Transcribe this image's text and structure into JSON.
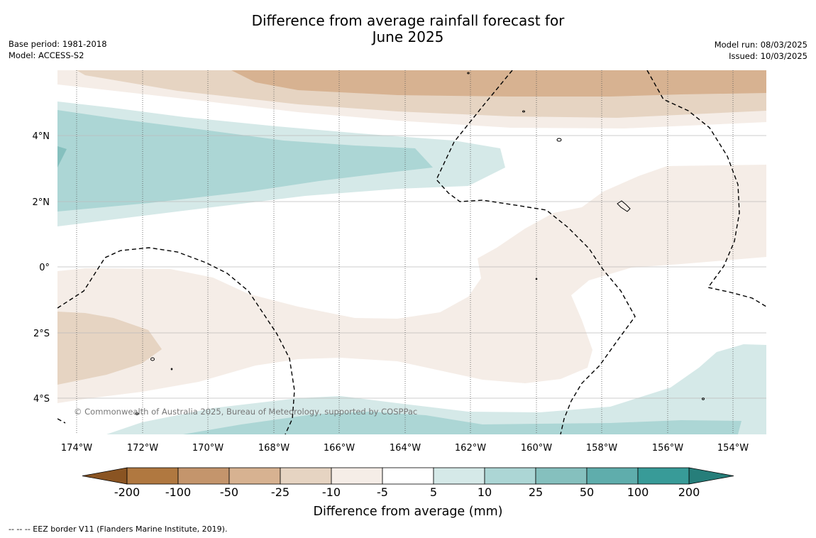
{
  "title_line1": "Difference from average rainfall forecast for",
  "title_line2": "June 2025",
  "meta_left": {
    "base_period": "Base period: 1981-2018",
    "model": "Model: ACCESS-S2"
  },
  "meta_right": {
    "model_run": "Model run: 08/03/2025",
    "issued": "Issued: 10/03/2025"
  },
  "map": {
    "lat_labels": [
      "4°N",
      "2°N",
      "0°",
      "2°S",
      "4°S"
    ],
    "lon_labels": [
      "174°W",
      "172°W",
      "170°W",
      "168°W",
      "166°W",
      "164°W",
      "162°W",
      "160°W",
      "158°W",
      "156°W",
      "154°W"
    ],
    "copyright": "© Commonwealth of Australia 2025, Bureau of Meteorology, supported by COSPPac"
  },
  "colorbar": {
    "ticks": [
      "-200",
      "-100",
      "-50",
      "-25",
      "-10",
      "-5",
      "5",
      "10",
      "25",
      "50",
      "100",
      "200"
    ],
    "colors": [
      "#8a5422",
      "#b07840",
      "#c4956c",
      "#d7b291",
      "#e6d4c2",
      "#f5ede7",
      "#ffffff",
      "#d5e9e8",
      "#acd6d5",
      "#85c0be",
      "#5fadac",
      "#389b98",
      "#267e7a"
    ],
    "label": "Difference from average (mm)"
  },
  "footnote": "--  --  -- EEZ border V11 (Flanders Marine Institute, 2019).",
  "legend_colors": {
    "tan_light": "#f5ede7",
    "tan_mid": "#e6d4c2",
    "tan_dark": "#d7b291",
    "teal_light": "#d5e9e8",
    "teal_mid": "#acd6d5"
  }
}
